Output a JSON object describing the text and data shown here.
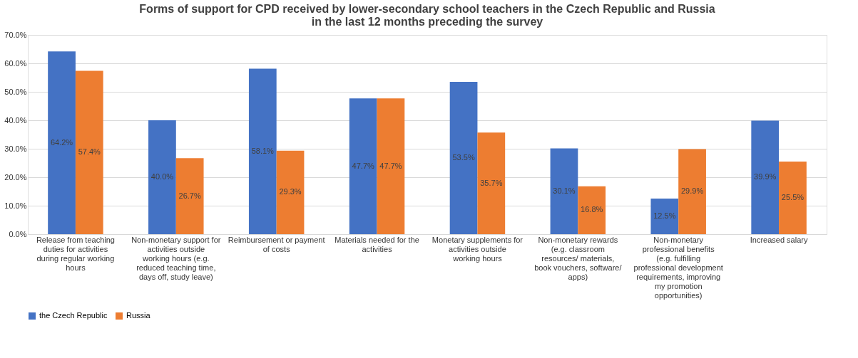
{
  "chart_data": {
    "type": "bar",
    "title": [
      "Forms of support for CPD received by lower-secondary school teachers in the Czech Republic and Russia",
      "in the last 12 months preceding the survey"
    ],
    "categories": [
      "Release from teaching duties for activities during regular working hours",
      "Non-monetary support for activities outside working hours (e.g. reduced teaching time, days off, study leave)",
      "Reimbursement or payment of costs",
      "Materials needed for the activities",
      "Monetary supplements for activities outside working hours",
      "Non-monetary rewards (e.g. classroom resources/ materials, book vouchers, software/ apps)",
      "Non-monetary professional benefits (e.g. fulfilling professional development requirements, improving my promotion opportunities)",
      "Increased salary"
    ],
    "series": [
      {
        "name": "the Czech Republic",
        "color": "#4472c4",
        "values": [
          64.2,
          40.0,
          58.1,
          47.7,
          53.5,
          30.1,
          12.5,
          39.9
        ],
        "value_labels": [
          "64.2%",
          "40.0%",
          "58.1%",
          "47.7%",
          "53.5%",
          "30.1%",
          "12.5%",
          "39.9%"
        ]
      },
      {
        "name": "Russia",
        "color": "#ed7d31",
        "values": [
          57.4,
          26.7,
          29.3,
          47.7,
          35.7,
          16.8,
          29.9,
          25.5
        ],
        "value_labels": [
          "57.4%",
          "26.7%",
          "29.3%",
          "47.7%",
          "35.7%",
          "16.8%",
          "29.9%",
          "25.5%"
        ]
      }
    ],
    "ylim": [
      0,
      70
    ],
    "yticks": [
      {
        "value": 0,
        "label": "0.0%"
      },
      {
        "value": 10,
        "label": "10.0%"
      },
      {
        "value": 20,
        "label": "20.0%"
      },
      {
        "value": 30,
        "label": "30.0%"
      },
      {
        "value": 40,
        "label": "40.0%"
      },
      {
        "value": 50,
        "label": "50.0%"
      },
      {
        "value": 60,
        "label": "60.0%"
      },
      {
        "value": 70,
        "label": "70.0%"
      }
    ],
    "grid": "y",
    "legend": "bottom"
  }
}
